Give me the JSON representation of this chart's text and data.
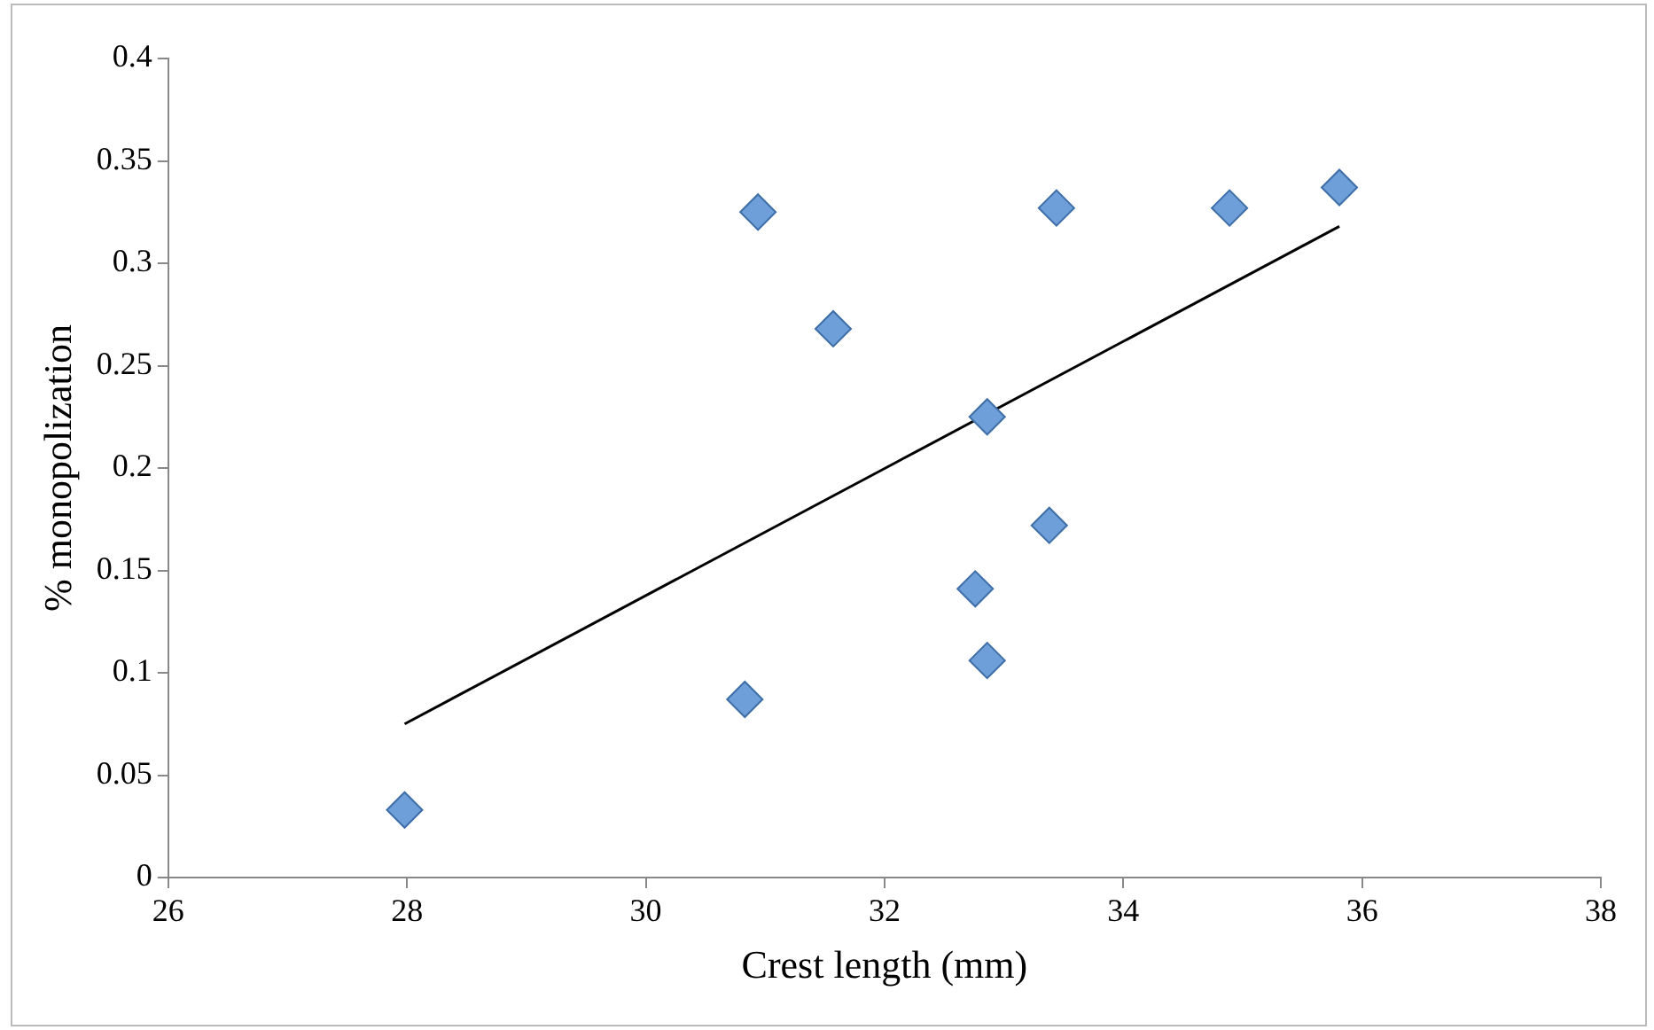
{
  "chart_data": {
    "type": "scatter",
    "xlabel": "Crest length (mm)",
    "ylabel": "% monopolization",
    "xlim": [
      26,
      38
    ],
    "xticks": [
      26,
      28,
      30,
      32,
      34,
      36,
      38
    ],
    "ylim": [
      0,
      0.4
    ],
    "yticks": [
      0,
      0.05,
      0.1,
      0.15,
      0.2,
      0.25,
      0.3,
      0.35,
      0.4
    ],
    "grid": false,
    "legend": false,
    "series": [
      {
        "marker": "diamond",
        "color": "#6f9fd8",
        "x": [
          27.98,
          30.83,
          30.94,
          31.57,
          32.76,
          32.86,
          32.86,
          33.38,
          33.44,
          34.89,
          35.81
        ],
        "values": [
          0.033,
          0.087,
          0.325,
          0.268,
          0.141,
          0.225,
          0.106,
          0.172,
          0.327,
          0.327,
          0.337
        ]
      },
      {
        "type": "line",
        "marker": "none",
        "color": "#000000",
        "x": [
          27.98,
          35.81
        ],
        "values": [
          0.075,
          0.318
        ]
      }
    ]
  }
}
